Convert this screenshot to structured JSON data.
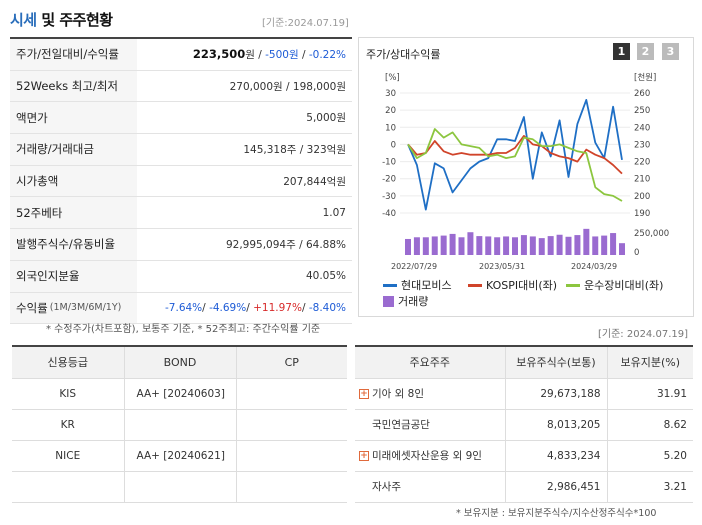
{
  "header": {
    "title_a": "시세",
    "title_b": "및 주주현황",
    "date": "[기준:2024.07.19]"
  },
  "summary": {
    "rows": [
      {
        "label": "주가/전일대비/수익률"
      },
      {
        "label": "52Weeks 최고/최저",
        "value": "270,000원 / 198,000원"
      },
      {
        "label": "액면가",
        "value": "5,000원"
      },
      {
        "label": "거래량/거래대금",
        "value": "145,318주 / 323억원"
      },
      {
        "label": "시가총액",
        "value": "207,844억원"
      },
      {
        "label": "52주베타",
        "value": "1.07"
      },
      {
        "label": "발행주식수/유동비율",
        "value": "92,995,094주 / 64.88%"
      },
      {
        "label": "외국인지분율",
        "value": "40.05%"
      },
      {
        "label": "수익률",
        "label_sub": "(1M/3M/6M/1Y)"
      }
    ],
    "price": "223,500",
    "price_unit": "원 / ",
    "change": "-500원",
    "sep": " / ",
    "rate": "-0.22%",
    "returns": {
      "m1": "-7.64%",
      "m3": "-4.69%",
      "m6": "+11.97%",
      "y1": "-8.40%",
      "sep": "/ "
    },
    "note": "* 수정주가(차트포함), 보통주 기준, * 52주최고: 주간수익률 기준"
  },
  "chart_panel": {
    "title": "주가/상대수익률",
    "pages": [
      "1",
      "2",
      "3"
    ],
    "right_date": "[기준: 2024.07.19]"
  },
  "chart_data": {
    "type": "line",
    "x_tick_labels": [
      "2022/07/29",
      "2023/05/31",
      "2024/03/29"
    ],
    "left_axis_label": "[%]",
    "right_axis_label": "[천원]",
    "left_ticks": [
      "30",
      "20",
      "10",
      "0",
      "-10",
      "-20",
      "-30",
      "-40"
    ],
    "right_ticks": [
      "260",
      "250",
      "240",
      "230",
      "220",
      "210",
      "200",
      "190"
    ],
    "ylim_left": [
      -40,
      30
    ],
    "ylim_right": [
      190,
      260
    ],
    "volume_tick": "250,000",
    "volume_zero": "0",
    "series": [
      {
        "name": "현대모비스",
        "color": "#1f6fc5",
        "axis": "right",
        "values": [
          230,
          218,
          192,
          219,
          216,
          202,
          209,
          216,
          220,
          222,
          233,
          233,
          232,
          246,
          210,
          237,
          223,
          244,
          211,
          242,
          256,
          231,
          222,
          252,
          221
        ]
      },
      {
        "name": "KOSPI대비(좌)",
        "color": "#d0442a",
        "axis": "left",
        "values": [
          0,
          -6,
          -5,
          2,
          -4,
          -6,
          -5,
          -6,
          -6,
          -6,
          -5,
          -5,
          -2,
          5,
          0,
          -1,
          -5,
          -7,
          -8,
          -10,
          -3,
          -6,
          -8,
          -12,
          -17
        ]
      },
      {
        "name": "운수장비대비(좌)",
        "color": "#8cc63f",
        "axis": "left",
        "values": [
          0,
          -8,
          -5,
          9,
          4,
          7,
          0,
          -1,
          -2,
          -7,
          -6,
          -8,
          -7,
          4,
          3,
          -1,
          -1,
          0,
          -2,
          -4,
          -5,
          -25,
          -29,
          -30,
          -33
        ]
      },
      {
        "name": "거래량",
        "color": "#9a6bd0",
        "axis": "volume",
        "values": [
          95,
          105,
          105,
          110,
          115,
          125,
          105,
          135,
          112,
          110,
          105,
          110,
          105,
          118,
          110,
          100,
          112,
          120,
          108,
          118,
          155,
          110,
          115,
          130,
          70
        ]
      }
    ]
  },
  "credit": {
    "headers": [
      "신용등급",
      "BOND",
      "CP"
    ],
    "rows": [
      {
        "agency": "KIS",
        "bond": "AA+  [20240603]",
        "cp": ""
      },
      {
        "agency": "KR",
        "bond": "",
        "cp": ""
      },
      {
        "agency": "NICE",
        "bond": "AA+  [20240621]",
        "cp": ""
      },
      {
        "agency": "",
        "bond": "",
        "cp": ""
      }
    ]
  },
  "holders": {
    "headers": [
      "주요주주",
      "보유주식수(보통)",
      "보유지분(%)"
    ],
    "rows": [
      {
        "name": "기아 외 8인",
        "shares": "29,673,188",
        "pct": "31.91",
        "expand": true
      },
      {
        "name": "국민연금공단",
        "shares": "8,013,205",
        "pct": "8.62",
        "expand": false
      },
      {
        "name": "미래에셋자산운용 외 9인",
        "shares": "4,833,234",
        "pct": "5.20",
        "expand": true
      },
      {
        "name": "자사주",
        "shares": "2,986,451",
        "pct": "3.21",
        "expand": false
      }
    ],
    "note": "* 보유지분 : 보유지분주식수/지수산정주식수*100",
    "expand_glyph": "+"
  }
}
